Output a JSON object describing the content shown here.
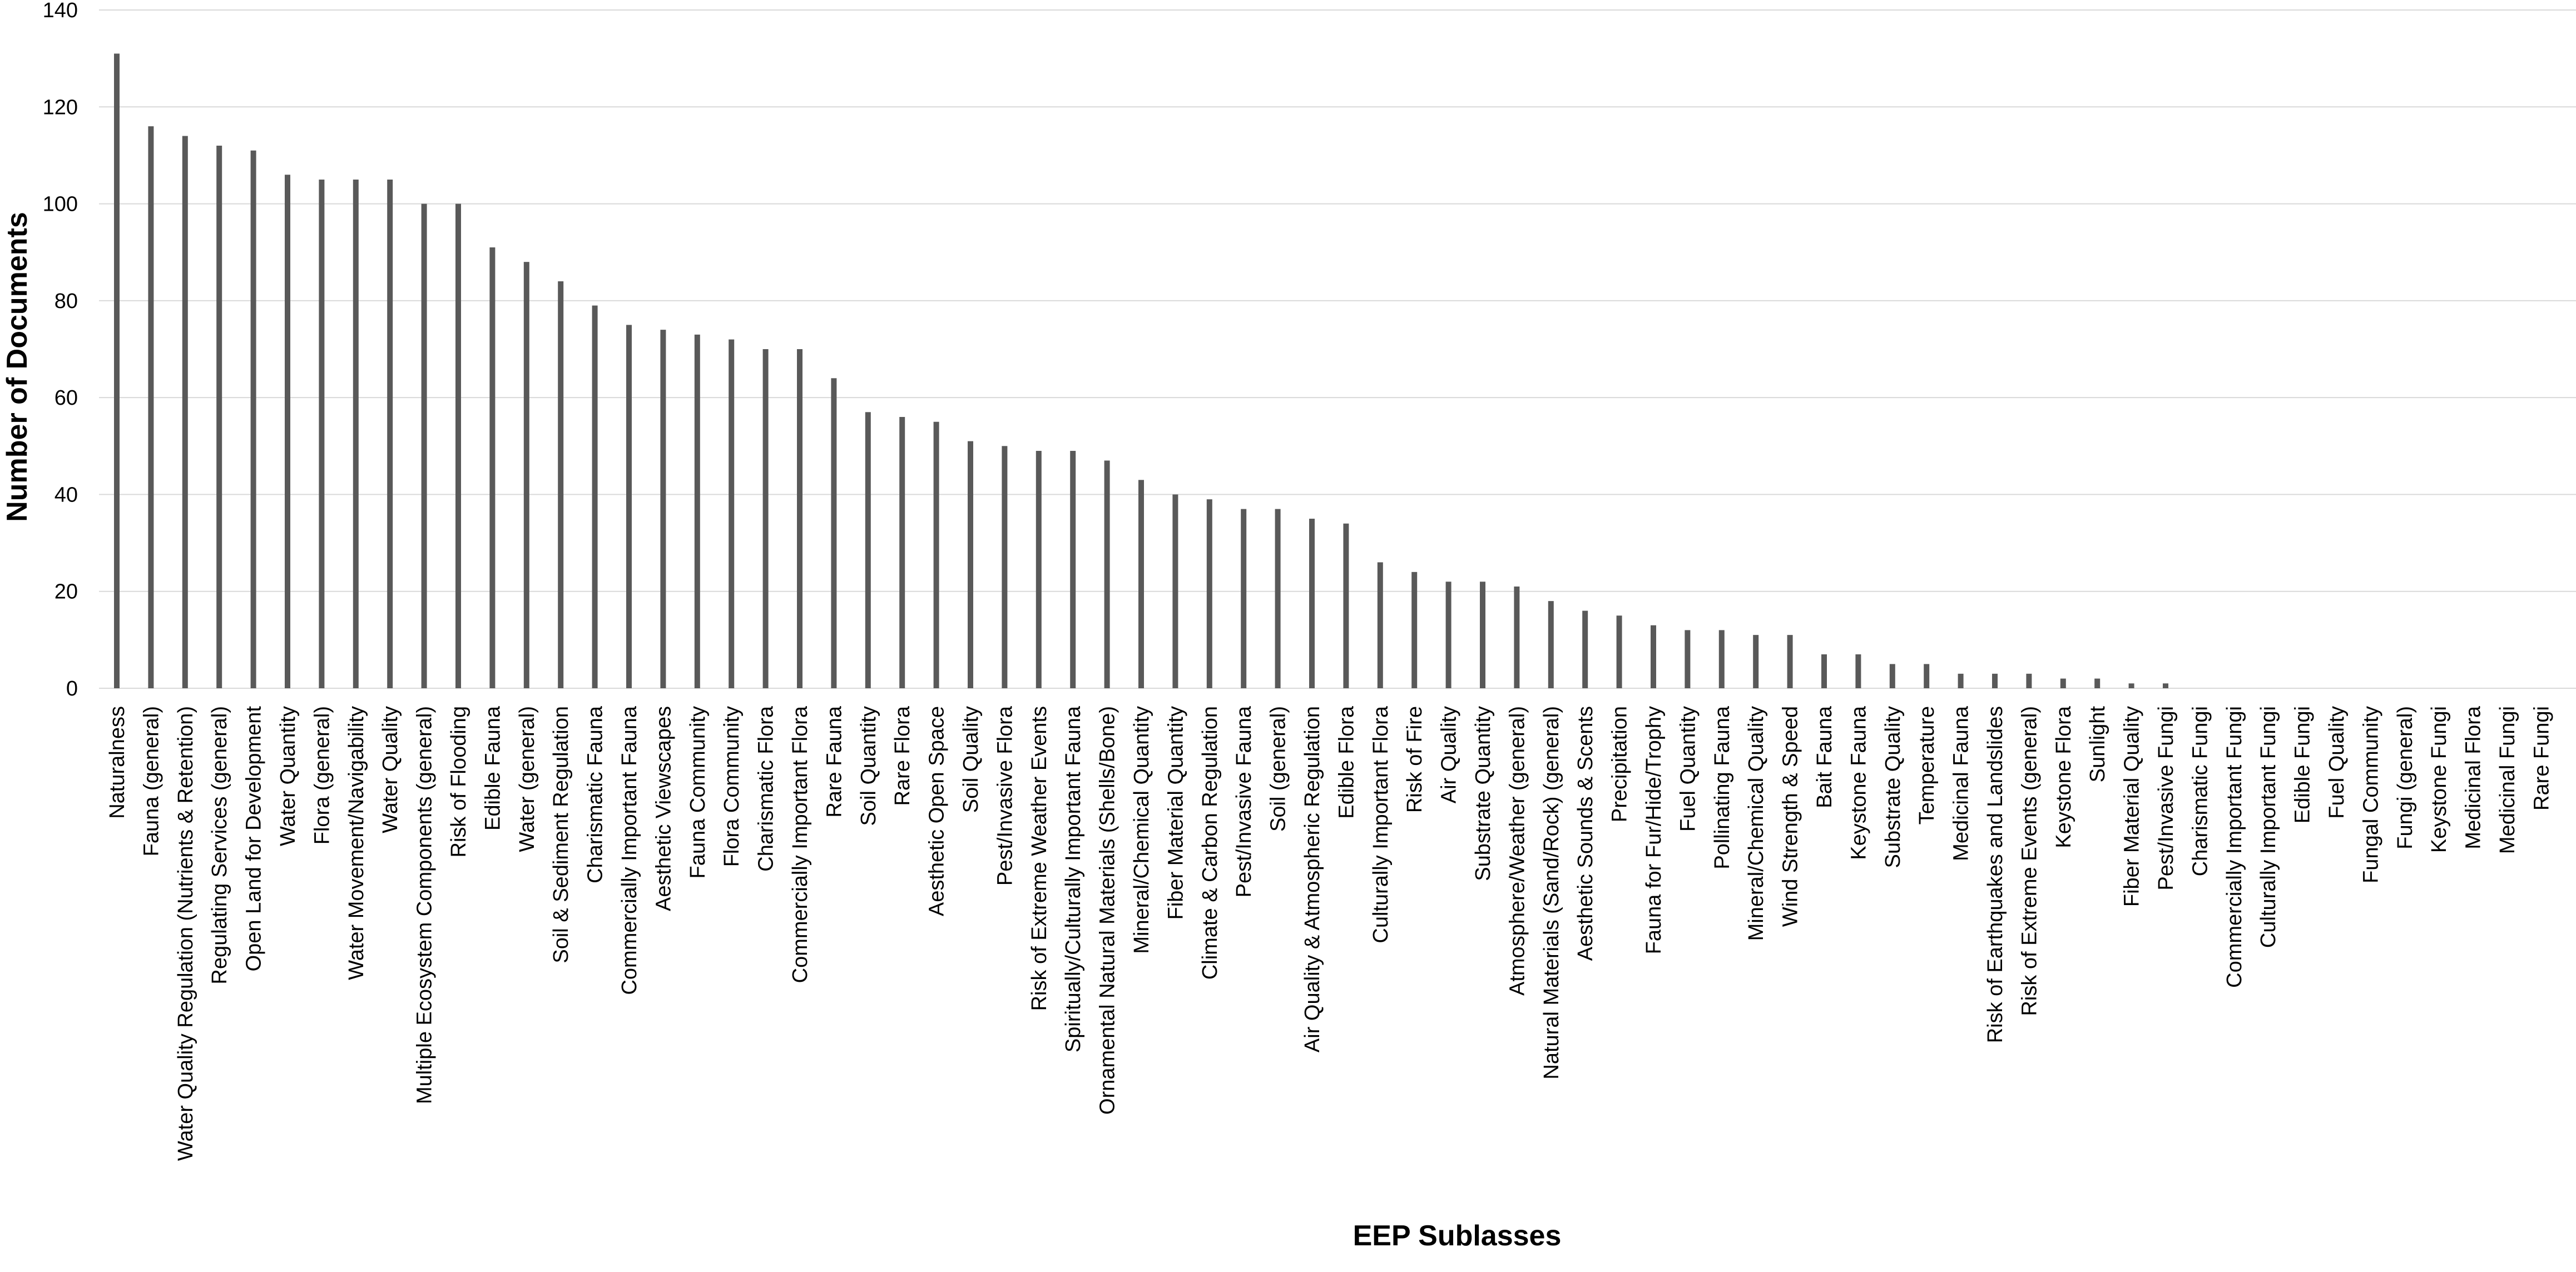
{
  "chart_data": {
    "type": "bar",
    "title": "",
    "xlabel": "EEP Sublasses",
    "ylabel": "Number of Documents",
    "ylim": [
      0,
      140
    ],
    "yticks": [
      0,
      20,
      40,
      60,
      80,
      100,
      120,
      140
    ],
    "grid": true,
    "legend": "none",
    "bar_color": "#595959",
    "categories": [
      "Naturalness",
      "Fauna (general)",
      "Water Quality Regulation (Nutrients & Retention)",
      "Regulating Services (general)",
      "Open Land for Development",
      "Water Quantity",
      "Flora (general)",
      "Water Movement/Navigability",
      "Water Quality",
      "Multiple Ecosystem Components (general)",
      "Risk of Flooding",
      "Edible Fauna",
      "Water (general)",
      "Soil & Sediment Regulation",
      "Charismatic Fauna",
      "Commercially Important Fauna",
      "Aesthetic Viewscapes",
      "Fauna Community",
      "Flora Community",
      "Charismatic Flora",
      "Commercially Important Flora",
      "Rare Fauna",
      "Soil Quantity",
      "Rare Flora",
      "Aesthetic Open Space",
      "Soil Quality",
      "Pest/Invasive Flora",
      "Risk of Extreme Weather Events",
      "Spiritually/Culturally Important Fauna",
      "Ornamental Natural Materials (Shells/Bone)",
      "Mineral/Chemical Quantity",
      "Fiber Material Quantity",
      "Climate & Carbon Regulation",
      "Pest/Invasive Fauna",
      "Soil (general)",
      "Air Quality & Atmospheric Regulation",
      "Edible Flora",
      "Culturally Important Flora",
      "Risk of Fire",
      "Air Quality",
      "Substrate Quantity",
      "Atmosphere/Weather (general)",
      "Natural Materials (Sand/Rock) (general)",
      "Aesthetic Sounds & Scents",
      "Precipitation",
      "Fauna for Fur/Hide/Trophy",
      "Fuel Quantity",
      "Pollinating Fauna",
      "Mineral/Chemical Quality",
      "Wind Strength & Speed",
      "Bait Fauna",
      "Keystone Fauna",
      "Substrate Quality",
      "Temperature",
      "Medicinal Fauna",
      "Risk of Earthquakes and Landslides",
      "Risk of Extreme Events (general)",
      "Keystone Flora",
      "Sunlight",
      "Fiber Material Quality",
      "Pest/Invasive Fungi",
      "Charismatic Fungi",
      "Commercially Important Fungi",
      "Culturally Important Fungi",
      "Edible Fungi",
      "Fuel Quality",
      "Fungal Community",
      "Fungi (general)",
      "Keystone Fungi",
      "Medicinal Flora",
      "Medicinal Fungi",
      "Rare Fungi"
    ],
    "values": [
      131,
      116,
      114,
      112,
      111,
      106,
      105,
      105,
      105,
      100,
      100,
      91,
      88,
      84,
      79,
      75,
      74,
      73,
      72,
      70,
      70,
      64,
      57,
      56,
      55,
      51,
      50,
      49,
      49,
      47,
      43,
      40,
      39,
      37,
      37,
      35,
      34,
      26,
      24,
      22,
      22,
      21,
      18,
      16,
      15,
      13,
      12,
      12,
      11,
      11,
      7,
      7,
      5,
      5,
      3,
      3,
      3,
      2,
      2,
      1,
      1,
      0,
      0,
      0,
      0,
      0,
      0,
      0,
      0,
      0,
      0,
      0
    ]
  }
}
